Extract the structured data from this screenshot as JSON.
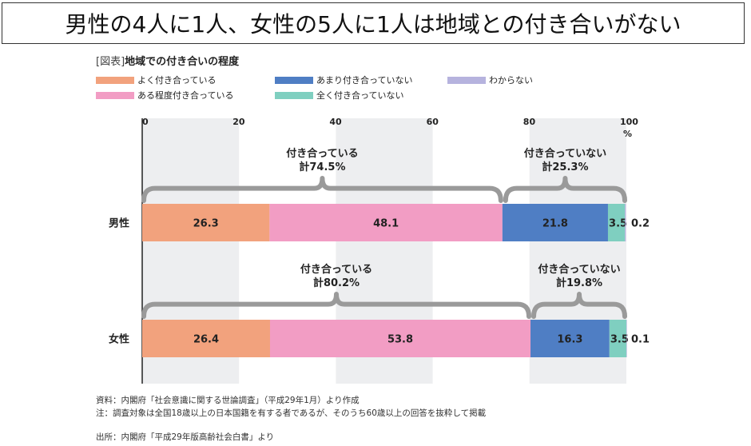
{
  "headline": "男性の4人に1人、女性の5人に1人は地域との付き合いがない",
  "figure": {
    "tag": "[図表]",
    "title": "地域での付き合いの程度"
  },
  "chart_data": {
    "type": "bar",
    "orientation": "horizontal-stacked-100",
    "categories": [
      "男性",
      "女性"
    ],
    "series": [
      {
        "name": "よく付き合っている",
        "values": [
          26.3,
          26.4
        ],
        "color": "#F2A27D"
      },
      {
        "name": "ある程度付き合っている",
        "values": [
          48.1,
          53.8
        ],
        "color": "#F29DC4"
      },
      {
        "name": "あまり付き合っていない",
        "values": [
          21.8,
          16.3
        ],
        "color": "#4F7EC4"
      },
      {
        "name": "全く付き合っていない",
        "values": [
          3.5,
          3.5
        ],
        "color": "#7FCFC0"
      },
      {
        "name": "わからない",
        "values": [
          0.2,
          0.1
        ],
        "color": "#B6B3DE"
      }
    ],
    "legend": [
      {
        "name": "よく付き合っている",
        "color": "#F2A27D"
      },
      {
        "name": "あまり付き合っていない",
        "color": "#4F7EC4"
      },
      {
        "name": "わからない",
        "color": "#B6B3DE"
      },
      {
        "name": "ある程度付き合っている",
        "color": "#F29DC4"
      },
      {
        "name": "全く付き合っていない",
        "color": "#7FCFC0"
      }
    ],
    "xlim": [
      0,
      100
    ],
    "xticks": [
      "0",
      "20",
      "40",
      "60",
      "80",
      "100"
    ],
    "xunit": "%",
    "grid_bands": true,
    "legend_position": "top",
    "annotations": [
      {
        "category": "男性",
        "label": "付き合っている",
        "total": "計74.5%"
      },
      {
        "category": "男性",
        "label": "付き合っていない",
        "total": "計25.3%"
      },
      {
        "category": "女性",
        "label": "付き合っている",
        "total": "計80.2%"
      },
      {
        "category": "女性",
        "label": "付き合っていない",
        "total": "計19.8%"
      }
    ]
  },
  "notes": [
    "資料：内閣府「社会意識に関する世論調査」（平成29年1月）より作成",
    "注：調査対象は全国18歳以上の日本国籍を有する者であるが、そのうち60歳以上の回答を抜粋して掲載"
  ],
  "source": "出所：内閣府「平成29年版高齢社会白書」より"
}
